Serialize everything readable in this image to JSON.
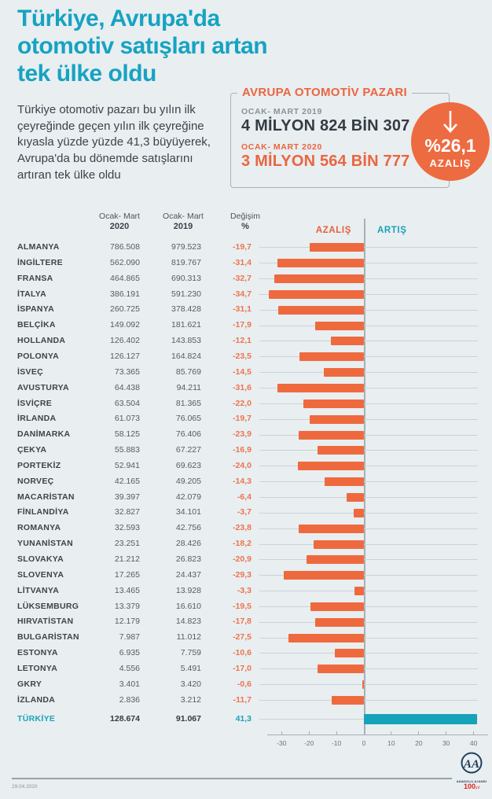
{
  "title_lines": [
    "Türkiye, Avrupa'da",
    "otomotiv satışları artan",
    "tek ülke oldu"
  ],
  "intro_lines": [
    "Türkiye otomotiv pazarı bu yılın ilk",
    "çeyreğinde geçen yılın ilk çeyreğine",
    "kıyasla yüzde yüzde 41,3 büyüyerek,",
    "Avrupa'da bu dönemde satışlarını",
    "artıran tek ülke oldu"
  ],
  "market_box": {
    "title": "AVRUPA OTOMOTİV PAZARI",
    "period_2019_label": "OCAK- MART 2019",
    "period_2019_value": "4 MİLYON 824 BİN 307",
    "period_2020_label": "OCAK- MART 2020",
    "period_2020_value": "3 MİLYON 564 BİN 777"
  },
  "decrease_badge": {
    "value": "%26,1",
    "label": "AZALIŞ"
  },
  "table_headers": {
    "col_2020_line1": "Ocak- Mart",
    "col_2020_line2": "2020",
    "col_2019_line1": "Ocak- Mart",
    "col_2019_line2": "2019",
    "col_change_line1": "Değişim",
    "col_change_line2": "%"
  },
  "chart_data": {
    "type": "bar",
    "orientation": "horizontal",
    "decrease_label": "AZALIŞ",
    "increase_label": "ARTIŞ",
    "axis_ticks": [
      -30,
      -20,
      -10,
      0,
      10,
      20,
      30,
      40
    ],
    "xlim": [
      -38,
      44
    ],
    "colors": {
      "decrease_bar": "#ee6a3e",
      "increase_bar": "#16a2b8"
    },
    "rows": [
      {
        "country": "ALMANYA",
        "v2020": "786.508",
        "v2019": "979.523",
        "change": -19.7,
        "change_label": "-19,7"
      },
      {
        "country": "İNGİLTERE",
        "v2020": "562.090",
        "v2019": "819.767",
        "change": -31.4,
        "change_label": "-31,4"
      },
      {
        "country": "FRANSA",
        "v2020": "464.865",
        "v2019": "690.313",
        "change": -32.7,
        "change_label": "-32,7"
      },
      {
        "country": "İTALYA",
        "v2020": "386.191",
        "v2019": "591.230",
        "change": -34.7,
        "change_label": "-34,7"
      },
      {
        "country": "İSPANYA",
        "v2020": "260.725",
        "v2019": "378.428",
        "change": -31.1,
        "change_label": "-31,1"
      },
      {
        "country": "BELÇİKA",
        "v2020": "149.092",
        "v2019": "181.621",
        "change": -17.9,
        "change_label": "-17,9"
      },
      {
        "country": "HOLLANDA",
        "v2020": "126.402",
        "v2019": "143.853",
        "change": -12.1,
        "change_label": "-12,1"
      },
      {
        "country": "POLONYA",
        "v2020": "126.127",
        "v2019": "164.824",
        "change": -23.5,
        "change_label": "-23,5"
      },
      {
        "country": "İSVEÇ",
        "v2020": "73.365",
        "v2019": "85.769",
        "change": -14.5,
        "change_label": "-14,5"
      },
      {
        "country": "AVUSTURYA",
        "v2020": "64.438",
        "v2019": "94.211",
        "change": -31.6,
        "change_label": "-31,6"
      },
      {
        "country": "İSVİÇRE",
        "v2020": "63.504",
        "v2019": "81.365",
        "change": -22.0,
        "change_label": "-22,0"
      },
      {
        "country": "İRLANDA",
        "v2020": "61.073",
        "v2019": "76.065",
        "change": -19.7,
        "change_label": "-19,7"
      },
      {
        "country": "DANİMARKA",
        "v2020": "58.125",
        "v2019": "76.406",
        "change": -23.9,
        "change_label": "-23,9"
      },
      {
        "country": "ÇEKYA",
        "v2020": "55.883",
        "v2019": "67.227",
        "change": -16.9,
        "change_label": "-16,9"
      },
      {
        "country": "PORTEKİZ",
        "v2020": "52.941",
        "v2019": "69.623",
        "change": -24.0,
        "change_label": "-24,0"
      },
      {
        "country": "NORVEÇ",
        "v2020": "42.165",
        "v2019": "49.205",
        "change": -14.3,
        "change_label": "-14,3"
      },
      {
        "country": "MACARİSTAN",
        "v2020": "39.397",
        "v2019": "42.079",
        "change": -6.4,
        "change_label": "-6,4"
      },
      {
        "country": "FİNLANDİYA",
        "v2020": "32.827",
        "v2019": "34.101",
        "change": -3.7,
        "change_label": "-3,7"
      },
      {
        "country": "ROMANYA",
        "v2020": "32.593",
        "v2019": "42.756",
        "change": -23.8,
        "change_label": "-23,8"
      },
      {
        "country": "YUNANİSTAN",
        "v2020": "23.251",
        "v2019": "28.426",
        "change": -18.2,
        "change_label": "-18,2"
      },
      {
        "country": "SLOVAKYA",
        "v2020": "21.212",
        "v2019": "26.823",
        "change": -20.9,
        "change_label": "-20,9"
      },
      {
        "country": "SLOVENYA",
        "v2020": "17.265",
        "v2019": "24.437",
        "change": -29.3,
        "change_label": "-29,3"
      },
      {
        "country": "LİTVANYA",
        "v2020": "13.465",
        "v2019": "13.928",
        "change": -3.3,
        "change_label": "-3,3"
      },
      {
        "country": "LÜKSEMBURG",
        "v2020": "13.379",
        "v2019": "16.610",
        "change": -19.5,
        "change_label": "-19,5"
      },
      {
        "country": "HIRVATİSTAN",
        "v2020": "12.179",
        "v2019": "14.823",
        "change": -17.8,
        "change_label": "-17,8"
      },
      {
        "country": "BULGARİSTAN",
        "v2020": "7.987",
        "v2019": "11.012",
        "change": -27.5,
        "change_label": "-27,5"
      },
      {
        "country": "ESTONYA",
        "v2020": "6.935",
        "v2019": "7.759",
        "change": -10.6,
        "change_label": "-10,6"
      },
      {
        "country": "LETONYA",
        "v2020": "4.556",
        "v2019": "5.491",
        "change": -17.0,
        "change_label": "-17,0"
      },
      {
        "country": "GKRY",
        "v2020": "3.401",
        "v2019": "3.420",
        "change": -0.6,
        "change_label": "-0,6"
      },
      {
        "country": "İZLANDA",
        "v2020": "2.836",
        "v2019": "3.212",
        "change": -11.7,
        "change_label": "-11,7"
      },
      {
        "country": "TÜRKİYE",
        "v2020": "128.674",
        "v2019": "91.067",
        "change": 41.3,
        "change_label": "41,3",
        "highlight": true
      }
    ]
  },
  "footer": {
    "date": "29.04.2020",
    "logo_monogram": "AA",
    "logo_agency": "ANADOLU AJANSI",
    "logo_anniversary": "100",
    "logo_anniversary_suffix": "yıl"
  }
}
